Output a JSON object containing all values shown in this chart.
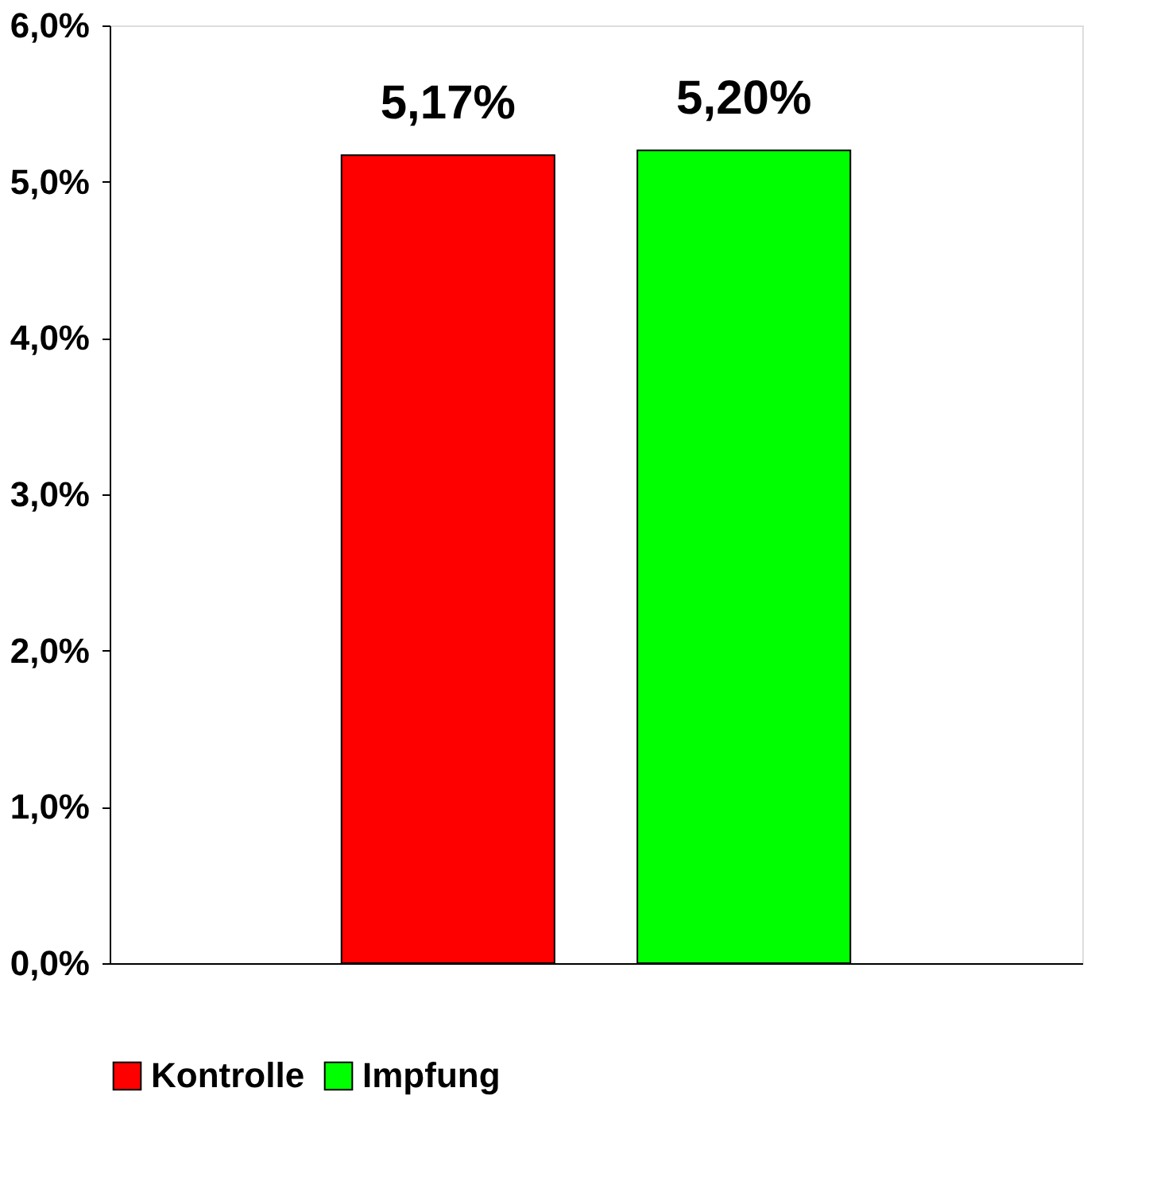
{
  "chart_data": {
    "type": "bar",
    "categories": [
      null
    ],
    "series": [
      {
        "name": "Kontrolle",
        "color": "#ff0000",
        "values": [
          5.17
        ],
        "value_labels": [
          "5,17%"
        ]
      },
      {
        "name": "Impfung",
        "color": "#00ff00",
        "values": [
          5.2
        ],
        "value_labels": [
          "5,20%"
        ]
      }
    ],
    "ylim": [
      0,
      6
    ],
    "yticks": [
      {
        "value": 0,
        "label": "0,0%"
      },
      {
        "value": 1,
        "label": "1,0%"
      },
      {
        "value": 2,
        "label": "2,0%"
      },
      {
        "value": 3,
        "label": "3,0%"
      },
      {
        "value": 4,
        "label": "4,0%"
      },
      {
        "value": 5,
        "label": "5,0%"
      },
      {
        "value": 6,
        "label": "6,0%"
      }
    ],
    "grid": false,
    "legend": "bottom"
  }
}
